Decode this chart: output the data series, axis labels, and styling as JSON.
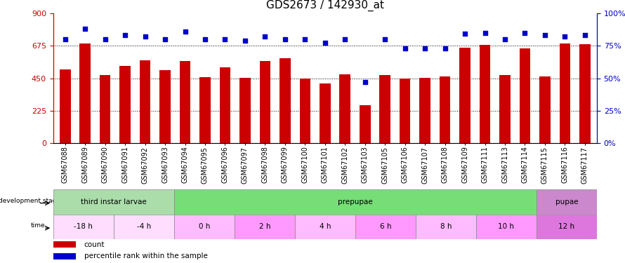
{
  "title": "GDS2673 / 142930_at",
  "samples": [
    "GSM67088",
    "GSM67089",
    "GSM67090",
    "GSM67091",
    "GSM67092",
    "GSM67093",
    "GSM67094",
    "GSM67095",
    "GSM67096",
    "GSM67097",
    "GSM67098",
    "GSM67099",
    "GSM67100",
    "GSM67101",
    "GSM67102",
    "GSM67103",
    "GSM67105",
    "GSM67106",
    "GSM67107",
    "GSM67108",
    "GSM67109",
    "GSM67111",
    "GSM67113",
    "GSM67114",
    "GSM67115",
    "GSM67116",
    "GSM67117"
  ],
  "counts": [
    510,
    690,
    470,
    535,
    575,
    505,
    570,
    460,
    525,
    453,
    570,
    590,
    450,
    415,
    475,
    265,
    470,
    450,
    453,
    462,
    660,
    680,
    473,
    655,
    462,
    690,
    685
  ],
  "percentiles": [
    80,
    88,
    80,
    83,
    82,
    80,
    86,
    80,
    80,
    79,
    82,
    80,
    80,
    77,
    80,
    47,
    80,
    73,
    73,
    73,
    84,
    85,
    80,
    85,
    83,
    82,
    83
  ],
  "ylim_left": [
    0,
    900
  ],
  "ylim_right": [
    0,
    100
  ],
  "yticks_left": [
    0,
    225,
    450,
    675,
    900
  ],
  "yticks_right": [
    0,
    25,
    50,
    75,
    100
  ],
  "bar_color": "#cc0000",
  "dot_color": "#0000cc",
  "bg_color": "#ffffff",
  "left_axis_color": "#cc0000",
  "right_axis_color": "#0000cc",
  "xlabel_fontsize": 7,
  "title_fontsize": 11,
  "tick_fontsize": 8,
  "development_stages": [
    {
      "label": "third instar larvae",
      "start": 0,
      "end": 6,
      "color": "#aaddaa"
    },
    {
      "label": "prepupae",
      "start": 6,
      "end": 24,
      "color": "#77dd77"
    },
    {
      "label": "pupae",
      "start": 24,
      "end": 27,
      "color": "#cc88cc"
    }
  ],
  "time_labels": [
    {
      "label": "-18 h",
      "start": 0,
      "end": 3,
      "color": "#ffddff"
    },
    {
      "label": "-4 h",
      "start": 3,
      "end": 6,
      "color": "#ffddff"
    },
    {
      "label": "0 h",
      "start": 6,
      "end": 9,
      "color": "#ffbbff"
    },
    {
      "label": "2 h",
      "start": 9,
      "end": 12,
      "color": "#ff99ff"
    },
    {
      "label": "4 h",
      "start": 12,
      "end": 15,
      "color": "#ffbbff"
    },
    {
      "label": "6 h",
      "start": 15,
      "end": 18,
      "color": "#ff99ff"
    },
    {
      "label": "8 h",
      "start": 18,
      "end": 21,
      "color": "#ffbbff"
    },
    {
      "label": "10 h",
      "start": 21,
      "end": 24,
      "color": "#ff99ff"
    },
    {
      "label": "12 h",
      "start": 24,
      "end": 27,
      "color": "#dd77dd"
    }
  ]
}
